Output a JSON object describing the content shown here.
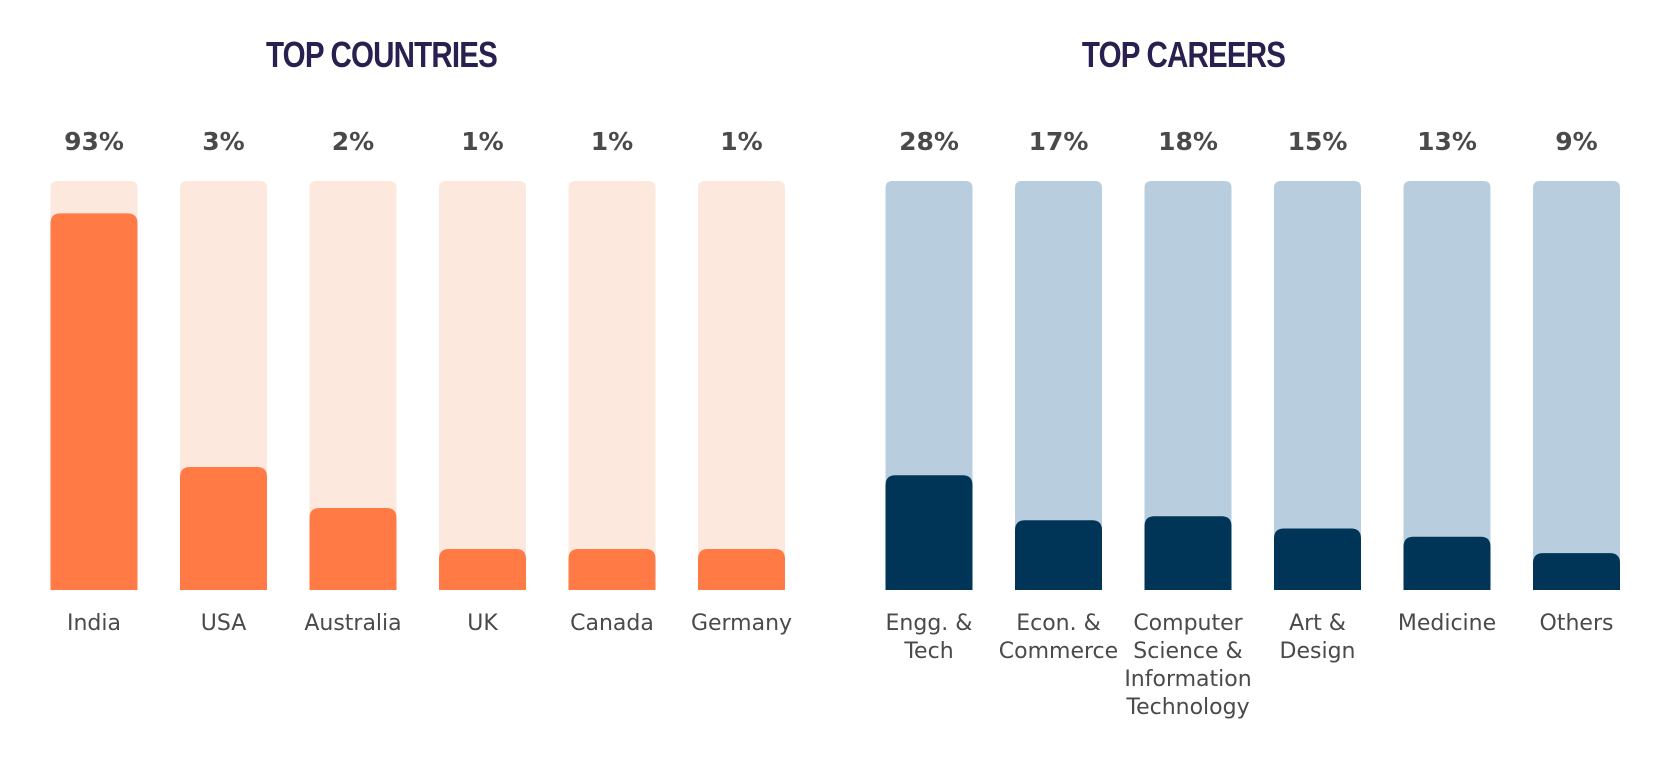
{
  "chart_data": [
    {
      "type": "bar",
      "title": "TOP COUNTRIES",
      "categories": [
        "India",
        "USA",
        "Australia",
        "UK",
        "Canada",
        "Germany"
      ],
      "values": [
        93,
        3,
        2,
        1,
        1,
        1
      ],
      "value_labels": [
        "93%",
        "3%",
        "2%",
        "1%",
        "1%",
        "1%"
      ],
      "colors": {
        "bar": "#ff7a45",
        "track": "#fde8de"
      }
    },
    {
      "type": "bar",
      "title": "TOP CAREERS",
      "categories": [
        "Engg. & Tech",
        "Econ. & Commerce",
        "Computer Science & Information Technology",
        "Art & Design",
        "Medicine",
        "Others"
      ],
      "category_lines": [
        [
          "Engg. &",
          "Tech"
        ],
        [
          "Econ. &",
          "Commerce"
        ],
        [
          "Computer",
          "Science &",
          "Information",
          "Technology"
        ],
        [
          "Art &",
          "Design"
        ],
        [
          "Medicine"
        ],
        [
          "Others"
        ]
      ],
      "values": [
        28,
        17,
        18,
        15,
        13,
        9
      ],
      "value_labels": [
        "28%",
        "17%",
        "18%",
        "15%",
        "13%",
        "9%"
      ],
      "colors": {
        "bar": "#013557",
        "track": "#b8cedf"
      }
    }
  ]
}
